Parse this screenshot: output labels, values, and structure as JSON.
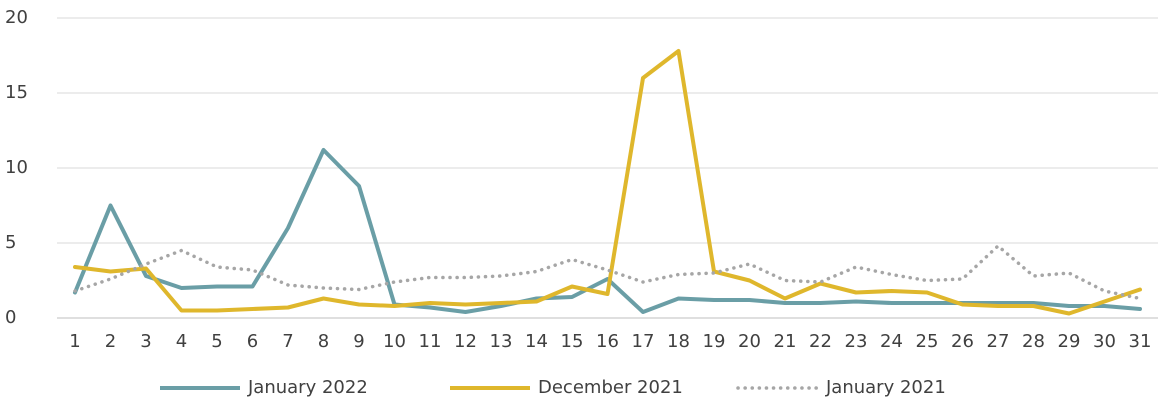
{
  "chart_data": {
    "type": "line",
    "categories": [
      "1",
      "2",
      "3",
      "4",
      "5",
      "6",
      "7",
      "8",
      "9",
      "10",
      "11",
      "12",
      "13",
      "14",
      "15",
      "16",
      "17",
      "18",
      "19",
      "20",
      "21",
      "22",
      "23",
      "24",
      "25",
      "26",
      "27",
      "28",
      "29",
      "30",
      "31"
    ],
    "series": [
      {
        "name": "January 2022",
        "color": "#6a9ea6",
        "style": "solid",
        "values": [
          1.7,
          7.5,
          2.8,
          2.0,
          2.1,
          2.1,
          6.0,
          11.2,
          8.8,
          0.9,
          0.7,
          0.4,
          0.8,
          1.3,
          1.4,
          2.6,
          0.4,
          1.3,
          1.2,
          1.2,
          1.0,
          1.0,
          1.1,
          1.0,
          1.0,
          1.0,
          1.0,
          1.0,
          0.8,
          0.8,
          0.6
        ]
      },
      {
        "name": "December 2021",
        "color": "#dfb72c",
        "style": "solid",
        "values": [
          3.4,
          3.1,
          3.3,
          0.5,
          0.5,
          0.6,
          0.7,
          1.3,
          0.9,
          0.8,
          1.0,
          0.9,
          1.0,
          1.1,
          2.1,
          1.6,
          16.0,
          17.8,
          3.1,
          2.5,
          1.3,
          2.3,
          1.7,
          1.8,
          1.7,
          0.9,
          0.8,
          0.8,
          0.3,
          1.1,
          1.9
        ]
      },
      {
        "name": "January 2021",
        "color": "#a6a6a6",
        "style": "dotted",
        "values": [
          1.8,
          2.6,
          3.6,
          4.5,
          3.4,
          3.2,
          2.2,
          2.0,
          1.9,
          2.4,
          2.7,
          2.7,
          2.8,
          3.1,
          3.9,
          3.2,
          2.4,
          2.9,
          3.0,
          3.6,
          2.5,
          2.4,
          3.4,
          2.9,
          2.5,
          2.6,
          4.8,
          2.8,
          3.0,
          1.8,
          1.3
        ]
      }
    ],
    "ylim": [
      0,
      20
    ],
    "yticks": [
      0,
      5,
      10,
      15,
      20
    ],
    "grid": true,
    "legend": "bottom"
  }
}
